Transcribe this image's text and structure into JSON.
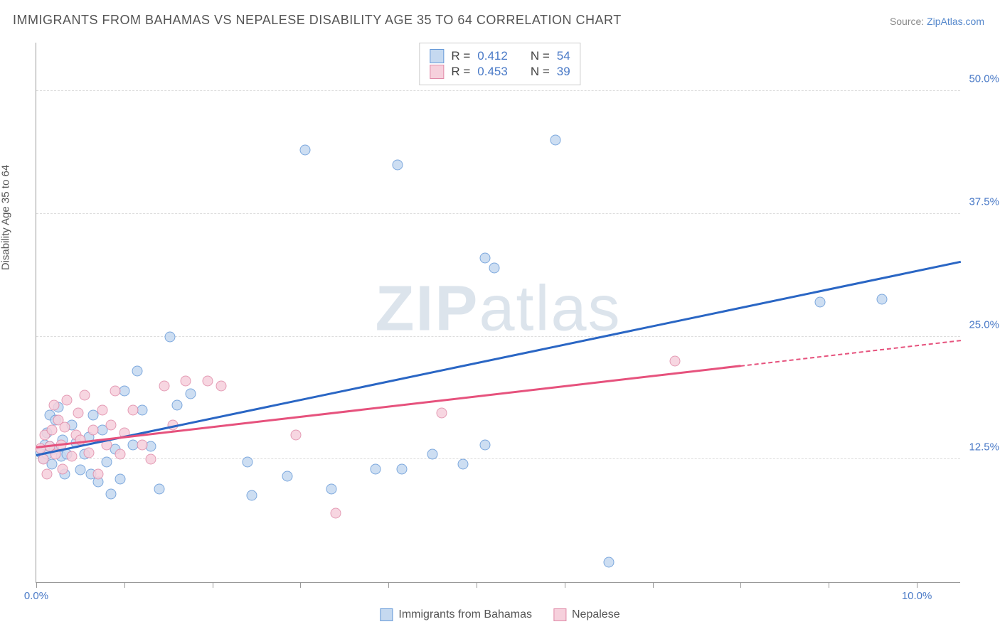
{
  "title": "IMMIGRANTS FROM BAHAMAS VS NEPALESE DISABILITY AGE 35 TO 64 CORRELATION CHART",
  "source_prefix": "Source: ",
  "source_link": "ZipAtlas.com",
  "ylabel": "Disability Age 35 to 64",
  "watermark_a": "ZIP",
  "watermark_b": "atlas",
  "chart": {
    "type": "scatter",
    "xlim": [
      0,
      10.5
    ],
    "ylim": [
      0,
      55
    ],
    "background_color": "#ffffff",
    "grid_color": "#dddddd",
    "axis_color": "#999999",
    "point_radius": 7.5,
    "point_border_width": 1.5,
    "regline_width": 3,
    "yticks": [
      {
        "v": 12.5,
        "label": "12.5%"
      },
      {
        "v": 25.0,
        "label": "25.0%"
      },
      {
        "v": 37.5,
        "label": "37.5%"
      },
      {
        "v": 50.0,
        "label": "50.0%"
      }
    ],
    "xticks": [
      0,
      1,
      2,
      3,
      4,
      5,
      6,
      7,
      8,
      9,
      10
    ],
    "xtick_labels": {
      "0": "0.0%",
      "10": "10.0%"
    },
    "tick_label_color": "#4a7ac7",
    "tick_label_fontsize": 15,
    "label_color": "#555555",
    "label_fontsize": 15,
    "title_fontsize": 18,
    "title_color": "#555555"
  },
  "series": [
    {
      "name": "Immigrants from Bahamas",
      "color_stroke": "#6699d8",
      "color_fill": "#c5d9f0",
      "reg_color": "#2a66c4",
      "R": "0.412",
      "N": "54",
      "regression": {
        "x1": 0.0,
        "y1": 12.8,
        "x2": 10.5,
        "y2": 32.5
      },
      "regression_solid_end_x": 10.5,
      "points": [
        [
          0.05,
          13.2
        ],
        [
          0.08,
          12.6
        ],
        [
          0.1,
          14.0
        ],
        [
          0.12,
          15.2
        ],
        [
          0.12,
          13.0
        ],
        [
          0.15,
          13.8
        ],
        [
          0.15,
          17.0
        ],
        [
          0.18,
          12.0
        ],
        [
          0.2,
          13.5
        ],
        [
          0.22,
          16.5
        ],
        [
          0.25,
          17.8
        ],
        [
          0.28,
          12.8
        ],
        [
          0.3,
          14.5
        ],
        [
          0.32,
          11.0
        ],
        [
          0.35,
          13.0
        ],
        [
          0.4,
          16.0
        ],
        [
          0.45,
          14.2
        ],
        [
          0.5,
          11.4
        ],
        [
          0.55,
          13.0
        ],
        [
          0.6,
          14.8
        ],
        [
          0.62,
          11.0
        ],
        [
          0.65,
          17.0
        ],
        [
          0.7,
          10.2
        ],
        [
          0.75,
          15.5
        ],
        [
          0.8,
          12.2
        ],
        [
          0.85,
          9.0
        ],
        [
          0.9,
          13.5
        ],
        [
          0.95,
          10.5
        ],
        [
          1.0,
          19.5
        ],
        [
          1.1,
          14.0
        ],
        [
          1.15,
          21.5
        ],
        [
          1.2,
          17.5
        ],
        [
          1.3,
          13.8
        ],
        [
          1.4,
          9.5
        ],
        [
          1.52,
          25.0
        ],
        [
          1.6,
          18.0
        ],
        [
          1.75,
          19.2
        ],
        [
          2.4,
          12.2
        ],
        [
          2.45,
          8.8
        ],
        [
          2.85,
          10.8
        ],
        [
          3.05,
          44.0
        ],
        [
          3.35,
          9.5
        ],
        [
          3.85,
          11.5
        ],
        [
          4.1,
          42.5
        ],
        [
          4.15,
          11.5
        ],
        [
          4.5,
          13.0
        ],
        [
          4.85,
          12.0
        ],
        [
          5.1,
          33.0
        ],
        [
          5.2,
          32.0
        ],
        [
          5.9,
          45.0
        ],
        [
          6.5,
          2.0
        ],
        [
          8.9,
          28.5
        ],
        [
          9.6,
          28.8
        ],
        [
          5.1,
          14.0
        ]
      ]
    },
    {
      "name": "Nepalese",
      "color_stroke": "#e08aa8",
      "color_fill": "#f6d0dc",
      "reg_color": "#e6527d",
      "R": "0.453",
      "N": "39",
      "regression": {
        "x1": 0.0,
        "y1": 13.6,
        "x2": 10.5,
        "y2": 24.5
      },
      "regression_solid_end_x": 8.0,
      "points": [
        [
          0.05,
          13.6
        ],
        [
          0.08,
          12.5
        ],
        [
          0.1,
          15.0
        ],
        [
          0.12,
          11.0
        ],
        [
          0.15,
          13.8
        ],
        [
          0.18,
          15.5
        ],
        [
          0.2,
          18.0
        ],
        [
          0.22,
          13.0
        ],
        [
          0.25,
          16.5
        ],
        [
          0.28,
          14.0
        ],
        [
          0.3,
          11.5
        ],
        [
          0.32,
          15.8
        ],
        [
          0.35,
          18.5
        ],
        [
          0.4,
          12.8
        ],
        [
          0.45,
          15.0
        ],
        [
          0.48,
          17.2
        ],
        [
          0.5,
          14.5
        ],
        [
          0.55,
          19.0
        ],
        [
          0.6,
          13.2
        ],
        [
          0.65,
          15.5
        ],
        [
          0.7,
          11.0
        ],
        [
          0.75,
          17.5
        ],
        [
          0.8,
          14.0
        ],
        [
          0.85,
          16.0
        ],
        [
          0.9,
          19.5
        ],
        [
          0.95,
          13.0
        ],
        [
          1.0,
          15.2
        ],
        [
          1.1,
          17.5
        ],
        [
          1.2,
          14.0
        ],
        [
          1.3,
          12.5
        ],
        [
          1.45,
          20.0
        ],
        [
          1.55,
          16.0
        ],
        [
          1.7,
          20.5
        ],
        [
          1.95,
          20.5
        ],
        [
          2.1,
          20.0
        ],
        [
          2.95,
          15.0
        ],
        [
          3.4,
          7.0
        ],
        [
          4.6,
          17.2
        ],
        [
          7.25,
          22.5
        ]
      ]
    }
  ],
  "legend_top": {
    "r_label": "R  =",
    "n_label": "N  ="
  },
  "legend_bottom": [
    {
      "label": "Immigrants from Bahamas",
      "series": 0
    },
    {
      "label": "Nepalese",
      "series": 1
    }
  ]
}
